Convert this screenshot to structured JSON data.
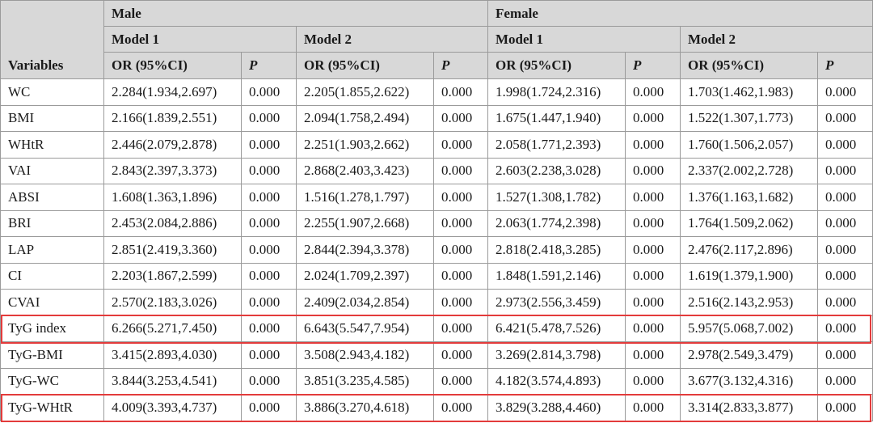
{
  "header": {
    "variables": "Variables",
    "groups": [
      "Male",
      "Female"
    ],
    "models": [
      "Model 1",
      "Model 2",
      "Model 1",
      "Model 2"
    ],
    "or_label": "OR (95%CI)",
    "p_label": "P"
  },
  "rows": [
    {
      "var": "WC",
      "v": [
        "2.284(1.934,2.697)",
        "0.000",
        "2.205(1.855,2.622)",
        "0.000",
        "1.998(1.724,2.316)",
        "0.000",
        "1.703(1.462,1.983)",
        "0.000"
      ]
    },
    {
      "var": "BMI",
      "v": [
        "2.166(1.839,2.551)",
        "0.000",
        "2.094(1.758,2.494)",
        "0.000",
        "1.675(1.447,1.940)",
        "0.000",
        "1.522(1.307,1.773)",
        "0.000"
      ]
    },
    {
      "var": "WHtR",
      "v": [
        "2.446(2.079,2.878)",
        "0.000",
        "2.251(1.903,2.662)",
        "0.000",
        "2.058(1.771,2.393)",
        "0.000",
        "1.760(1.506,2.057)",
        "0.000"
      ]
    },
    {
      "var": "VAI",
      "v": [
        "2.843(2.397,3.373)",
        "0.000",
        "2.868(2.403,3.423)",
        "0.000",
        "2.603(2.238,3.028)",
        "0.000",
        "2.337(2.002,2.728)",
        "0.000"
      ]
    },
    {
      "var": "ABSI",
      "v": [
        "1.608(1.363,1.896)",
        "0.000",
        "1.516(1.278,1.797)",
        "0.000",
        "1.527(1.308,1.782)",
        "0.000",
        "1.376(1.163,1.682)",
        "0.000"
      ]
    },
    {
      "var": "BRI",
      "v": [
        "2.453(2.084,2.886)",
        "0.000",
        "2.255(1.907,2.668)",
        "0.000",
        "2.063(1.774,2.398)",
        "0.000",
        "1.764(1.509,2.062)",
        "0.000"
      ]
    },
    {
      "var": "LAP",
      "v": [
        "2.851(2.419,3.360)",
        "0.000",
        "2.844(2.394,3.378)",
        "0.000",
        "2.818(2.418,3.285)",
        "0.000",
        "2.476(2.117,2.896)",
        "0.000"
      ]
    },
    {
      "var": "CI",
      "v": [
        "2.203(1.867,2.599)",
        "0.000",
        "2.024(1.709,2.397)",
        "0.000",
        "1.848(1.591,2.146)",
        "0.000",
        "1.619(1.379,1.900)",
        "0.000"
      ]
    },
    {
      "var": "CVAI",
      "v": [
        "2.570(2.183,3.026)",
        "0.000",
        "2.409(2.034,2.854)",
        "0.000",
        "2.973(2.556,3.459)",
        "0.000",
        "2.516(2.143,2.953)",
        "0.000"
      ]
    },
    {
      "var": "TyG index",
      "v": [
        "6.266(5.271,7.450)",
        "0.000",
        "6.643(5.547,7.954)",
        "0.000",
        "6.421(5.478,7.526)",
        "0.000",
        "5.957(5.068,7.002)",
        "0.000"
      ],
      "highlight": true
    },
    {
      "var": "TyG-BMI",
      "v": [
        "3.415(2.893,4.030)",
        "0.000",
        "3.508(2.943,4.182)",
        "0.000",
        "3.269(2.814,3.798)",
        "0.000",
        "2.978(2.549,3.479)",
        "0.000"
      ]
    },
    {
      "var": "TyG-WC",
      "v": [
        "3.844(3.253,4.541)",
        "0.000",
        "3.851(3.235,4.585)",
        "0.000",
        "4.182(3.574,4.893)",
        "0.000",
        "3.677(3.132,4.316)",
        "0.000"
      ]
    },
    {
      "var": "TyG-WHtR",
      "v": [
        "4.009(3.393,4.737)",
        "0.000",
        "3.886(3.270,4.618)",
        "0.000",
        "3.829(3.288,4.460)",
        "0.000",
        "3.314(2.833,3.877)",
        "0.000"
      ],
      "highlight": true
    }
  ],
  "highlight_color": "#e33b3b"
}
